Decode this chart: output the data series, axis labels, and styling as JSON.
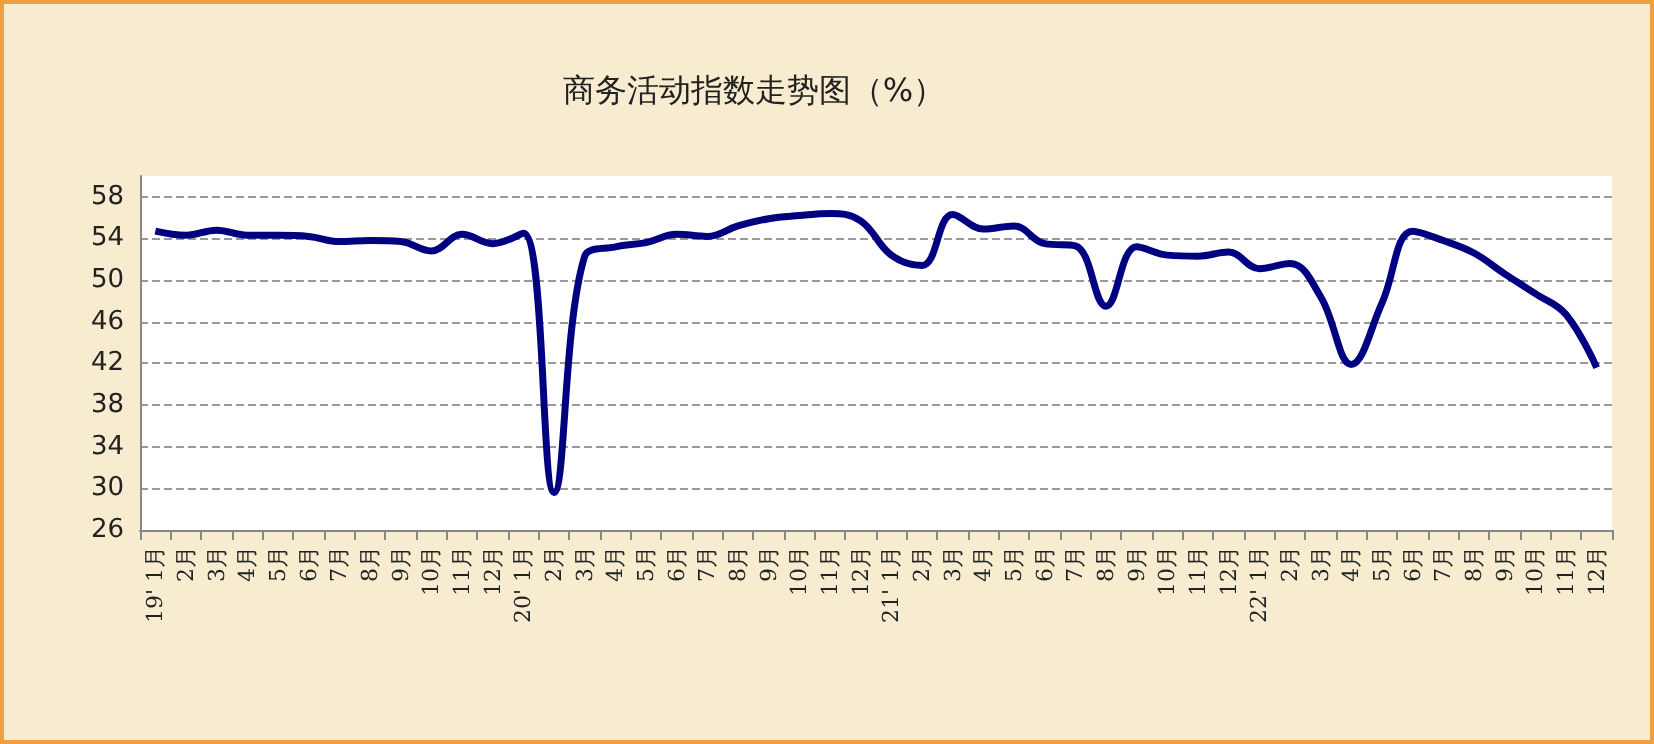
{
  "chart_data": {
    "type": "line",
    "title": "商务活动指数走势图（%）",
    "categories": [
      "19' 1月",
      "2月",
      "3月",
      "4月",
      "5月",
      "6月",
      "7月",
      "8月",
      "9月",
      "10月",
      "11月",
      "12月",
      "20' 1月",
      "2月",
      "3月",
      "4月",
      "5月",
      "6月",
      "7月",
      "8月",
      "9月",
      "10月",
      "11月",
      "12月",
      "21' 1月",
      "2月",
      "3月",
      "4月",
      "5月",
      "6月",
      "7月",
      "8月",
      "9月",
      "10月",
      "11月",
      "12月",
      "22' 1月",
      "2月",
      "3月",
      "4月",
      "5月",
      "6月",
      "7月",
      "8月",
      "9月",
      "10月",
      "11月",
      "12月"
    ],
    "series": [
      {
        "color": "#000080",
        "values": [
          54.7,
          54.3,
          54.8,
          54.3,
          54.3,
          54.2,
          53.7,
          53.8,
          53.7,
          52.8,
          54.4,
          53.5,
          54.5,
          29.6,
          52.3,
          53.2,
          53.6,
          54.4,
          54.2,
          55.2,
          55.9,
          56.2,
          56.4,
          55.7,
          52.4,
          51.4,
          56.3,
          54.9,
          55.2,
          53.5,
          53.3,
          47.5,
          53.2,
          52.4,
          52.3,
          52.7,
          51.1,
          51.6,
          48.4,
          41.9,
          47.8,
          54.7,
          53.8,
          52.6,
          50.6,
          48.7,
          46.7,
          41.6
        ]
      }
    ],
    "ylim": [
      26,
      60
    ],
    "yticks": [
      26,
      30,
      34,
      38,
      42,
      46,
      50,
      54,
      58
    ],
    "grid": "y",
    "marker": "none",
    "line_style": "solid"
  }
}
